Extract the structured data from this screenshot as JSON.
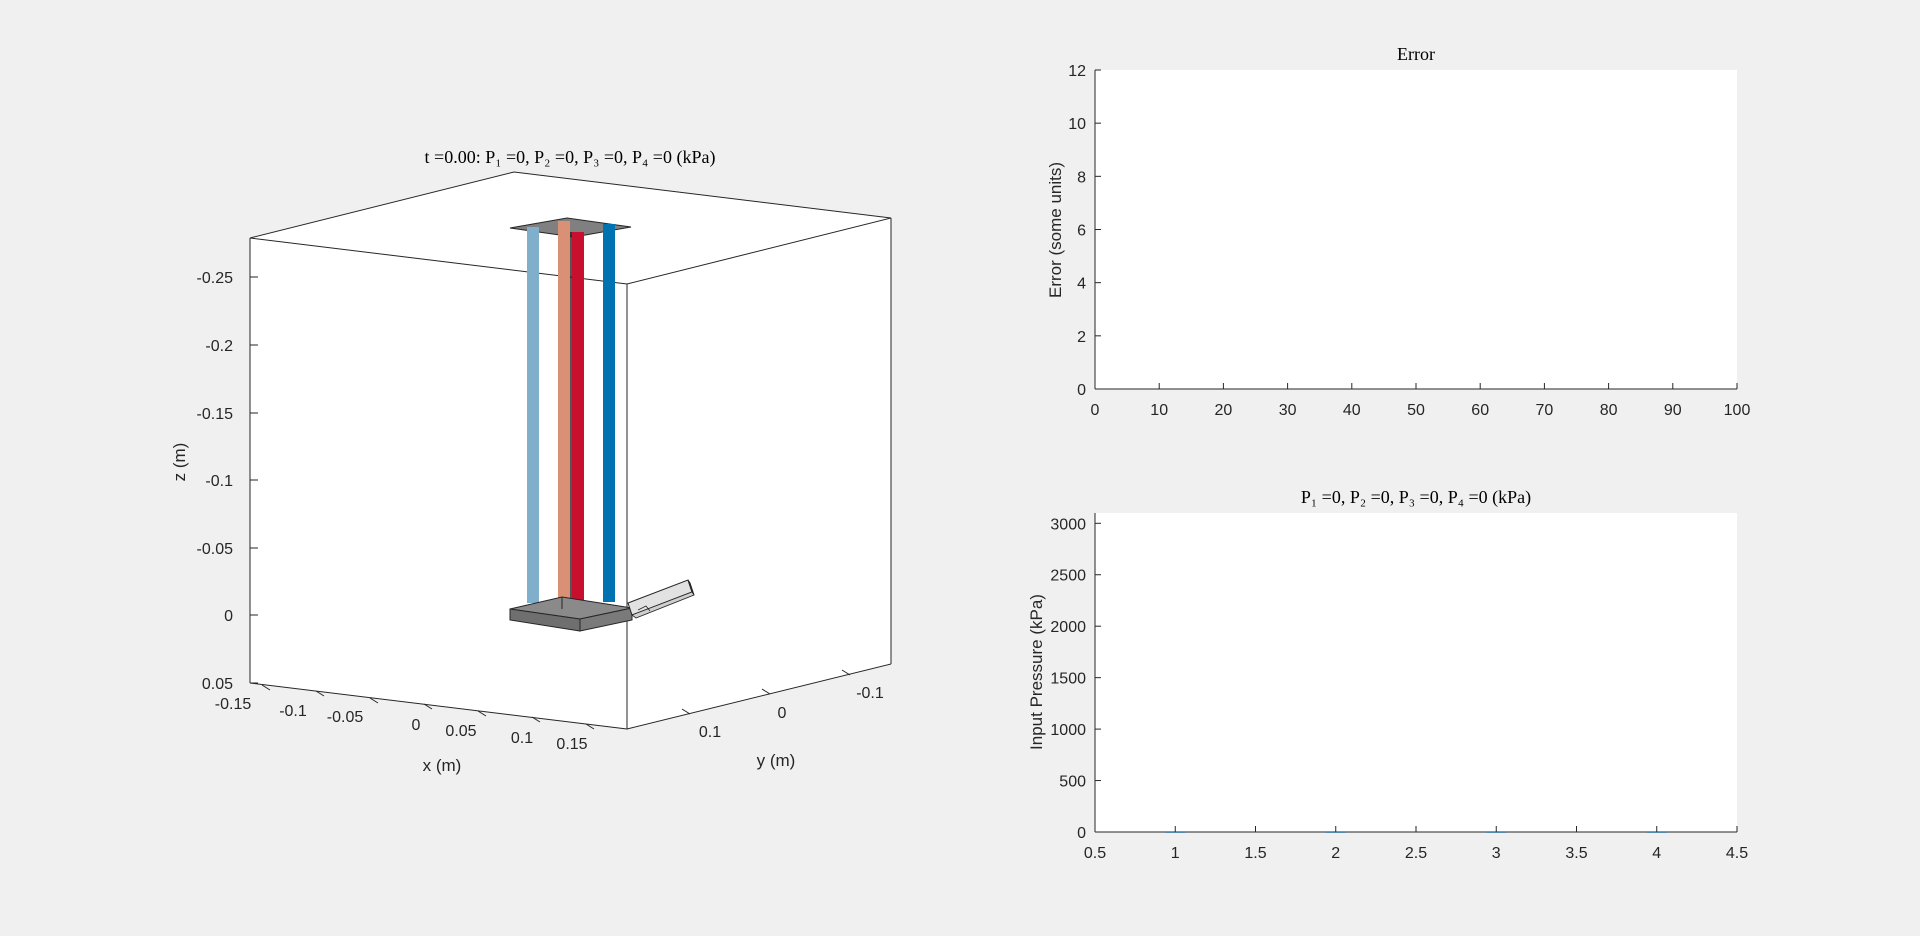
{
  "window": {
    "background": "#f0f0f0"
  },
  "plot3d": {
    "title": "t =0.00: P₁ =0, P₂ =0, P₃ =0, P₄ =0 (kPa)",
    "xlabel": "x (m)",
    "ylabel": "y (m)",
    "zlabel": "z (m)",
    "x_ticks": [
      "-0.15",
      "-0.1",
      "-0.05",
      "0",
      "0.05",
      "0.1",
      "0.15"
    ],
    "y_ticks": [
      "0.1",
      "0",
      "-0.1"
    ],
    "z_ticks": [
      "-0.25",
      "-0.2",
      "-0.15",
      "-0.1",
      "-0.05",
      "0",
      "0.05"
    ],
    "xlim": [
      -0.15,
      0.15
    ],
    "ylim": [
      0.15,
      -0.15
    ],
    "zlim": [
      0.05,
      -0.28
    ],
    "z_direction": "reversed",
    "rods": [
      {
        "name": "rod-1",
        "color": "#7fafca"
      },
      {
        "name": "rod-2",
        "color": "#d99074"
      },
      {
        "name": "rod-3",
        "color": "#c8102e"
      },
      {
        "name": "rod-4",
        "color": "#0072b2"
      }
    ],
    "plate_color": "#808080"
  },
  "chart_data": [
    {
      "type": "line",
      "title": "Error",
      "xlabel": "",
      "ylabel": "Error (some units)",
      "xlim": [
        0,
        100
      ],
      "ylim": [
        0,
        12
      ],
      "x_ticks": [
        "0",
        "10",
        "20",
        "30",
        "40",
        "50",
        "60",
        "70",
        "80",
        "90",
        "100"
      ],
      "y_ticks": [
        "0",
        "2",
        "4",
        "6",
        "8",
        "10",
        "12"
      ],
      "series": []
    },
    {
      "type": "line",
      "title": "P₁ =0, P₂ =0, P₃ =0, P₄ =0 (kPa)",
      "xlabel": "",
      "ylabel": "Input Pressure (kPa)",
      "xlim": [
        0.5,
        4.5
      ],
      "ylim": [
        0,
        3100
      ],
      "x_ticks": [
        "0.5",
        "1",
        "1.5",
        "2",
        "2.5",
        "3",
        "3.5",
        "4",
        "4.5"
      ],
      "y_ticks": [
        "0",
        "500",
        "1000",
        "1500",
        "2000",
        "2500",
        "3000"
      ],
      "categories": [
        1,
        2,
        3,
        4
      ],
      "values": [
        0,
        0,
        0,
        0
      ]
    }
  ]
}
